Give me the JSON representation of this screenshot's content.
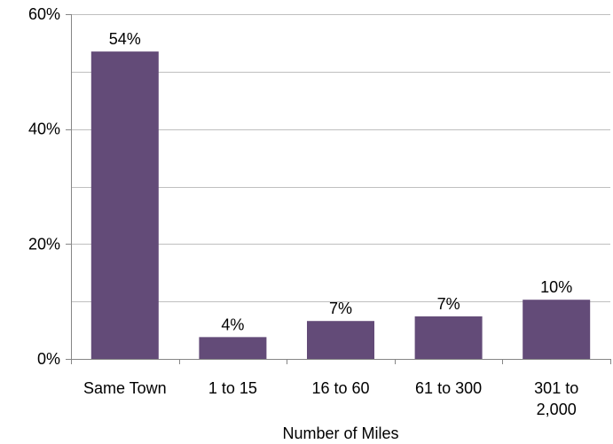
{
  "chart_data": {
    "type": "bar",
    "categories": [
      "Same Town",
      "1 to 15",
      "16 to 60",
      "61 to 300",
      "301 to 2,000"
    ],
    "category_lines": [
      [
        "Same Town"
      ],
      [
        "1 to 15"
      ],
      [
        "16 to 60"
      ],
      [
        "61 to 300"
      ],
      [
        "301 to",
        "2,000"
      ]
    ],
    "values": [
      53.5,
      3.8,
      6.6,
      7.4,
      10.3
    ],
    "data_labels": [
      "54%",
      "4%",
      "7%",
      "7%",
      "10%"
    ],
    "title": "",
    "xlabel": "Number of Miles",
    "ylabel": "",
    "ylim": [
      0,
      60
    ],
    "yticks": [
      0,
      20,
      40,
      60
    ],
    "ytick_labels": [
      "0%",
      "20%",
      "40%",
      "60%"
    ],
    "grid": true,
    "legend": "none",
    "bar_color": "#634B78",
    "grid_color": "#BFBFBF",
    "axis_color": "#868686"
  }
}
